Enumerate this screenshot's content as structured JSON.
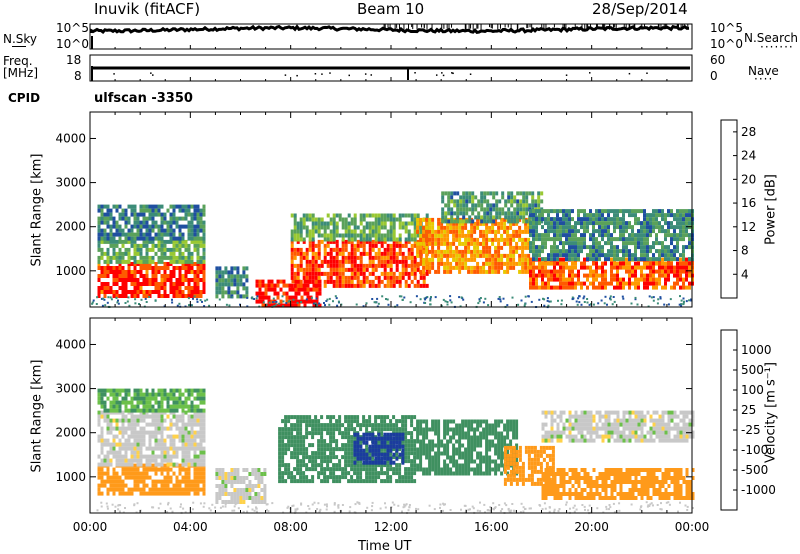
{
  "header": {
    "title": "Inuvik (fitACF)",
    "beam": "Beam 10",
    "date": "28/Sep/2014"
  },
  "strip": {
    "nsky_label": "N.Sky",
    "nsearch_label": "N.Search",
    "nsearch_dots": "·······",
    "freq_label_top": "Freq.",
    "freq_label_bottom": "[MHz]",
    "nave_label": "Nave",
    "nave_dots": "····",
    "cpid_label": "CPID",
    "cpid_value": "ulfscan -3350",
    "noise_ticks_left": [
      "10^5",
      "10^0"
    ],
    "noise_ticks_right": [
      "10^5",
      "10^0"
    ],
    "freq_ticks_left": [
      "18",
      "8"
    ],
    "nave_ticks_right": [
      "60",
      "0"
    ]
  },
  "colors": {
    "power_scale": [
      "#0000ff",
      "#1f4fa0",
      "#3c8c78",
      "#5aa15a",
      "#99c832",
      "#e8c800",
      "#ff9900",
      "#ff5a00",
      "#ff0000"
    ],
    "velocity_scale": [
      "#1b3c9e",
      "#2e6aa8",
      "#3f9060",
      "#6cc04a",
      "#c8c8c8",
      "#ffd24a",
      "#ff9a1a",
      "#ff5a00",
      "#ff0000"
    ]
  },
  "chart_data": [
    {
      "type": "heatmap",
      "name": "power",
      "ylabel": "Slant Range [km]",
      "xlabel": "Time UT",
      "x_ticks": [
        "00:00",
        "04:00",
        "08:00",
        "12:00",
        "16:00",
        "20:00",
        "00:00"
      ],
      "y_ticks": [
        "1000",
        "2000",
        "3000",
        "4000"
      ],
      "xlim_hours": [
        0,
        24
      ],
      "ylim_km": [
        180,
        4600
      ],
      "colorbar": {
        "label": "Power [dB]",
        "ticks": [
          "4",
          "8",
          "12",
          "16",
          "20",
          "24",
          "28"
        ],
        "range": [
          0,
          30
        ]
      },
      "regions": [
        {
          "t": [
            0.3,
            4.5
          ],
          "r": [
            400,
            1200
          ],
          "value": 27
        },
        {
          "t": [
            0.3,
            4.5
          ],
          "r": [
            1200,
            1700
          ],
          "value": 12
        },
        {
          "t": [
            0.3,
            4.5
          ],
          "r": [
            1700,
            2500
          ],
          "value": 8
        },
        {
          "t": [
            5.0,
            6.2
          ],
          "r": [
            400,
            1100
          ],
          "value": 8
        },
        {
          "t": [
            6.6,
            9.2
          ],
          "r": [
            250,
            800
          ],
          "value": 28
        },
        {
          "t": [
            8.0,
            13.5
          ],
          "r": [
            700,
            1700
          ],
          "value": 26
        },
        {
          "t": [
            8.0,
            13.5
          ],
          "r": [
            1700,
            2300
          ],
          "value": 12
        },
        {
          "t": [
            13.0,
            17.5
          ],
          "r": [
            1000,
            2200
          ],
          "value": 22
        },
        {
          "t": [
            14.0,
            18.0
          ],
          "r": [
            2100,
            2800
          ],
          "value": 10
        },
        {
          "t": [
            17.5,
            24.0
          ],
          "r": [
            600,
            1300
          ],
          "value": 25
        },
        {
          "t": [
            17.5,
            24.0
          ],
          "r": [
            1300,
            2400
          ],
          "value": 9
        }
      ]
    },
    {
      "type": "heatmap",
      "name": "velocity",
      "ylabel": "Slant Range [km]",
      "xlabel": "Time UT",
      "x_ticks": [
        "00:00",
        "04:00",
        "08:00",
        "12:00",
        "16:00",
        "20:00",
        "00:00"
      ],
      "y_ticks": [
        "1000",
        "2000",
        "3000",
        "4000"
      ],
      "xlim_hours": [
        0,
        24
      ],
      "ylim_km": [
        180,
        4600
      ],
      "colorbar": {
        "label": "Velocity [m s⁻¹]",
        "ticks": [
          "1000",
          "500",
          "100",
          "25",
          "-25",
          "-100",
          "-500",
          "-1000"
        ]
      },
      "regions": [
        {
          "t": [
            0.3,
            4.5
          ],
          "r": [
            600,
            1300
          ],
          "value": -150
        },
        {
          "t": [
            0.3,
            4.5
          ],
          "r": [
            1300,
            2500
          ],
          "value": 0
        },
        {
          "t": [
            0.3,
            4.5
          ],
          "r": [
            2500,
            3000
          ],
          "value": 60
        },
        {
          "t": [
            5.0,
            7.0
          ],
          "r": [
            400,
            1200
          ],
          "value": 0
        },
        {
          "t": [
            7.5,
            13.0
          ],
          "r": [
            900,
            2400
          ],
          "value": 150
        },
        {
          "t": [
            10.5,
            12.5
          ],
          "r": [
            1300,
            2000
          ],
          "value": 800
        },
        {
          "t": [
            13.0,
            17.0
          ],
          "r": [
            1100,
            2300
          ],
          "value": 200
        },
        {
          "t": [
            16.5,
            18.5
          ],
          "r": [
            800,
            1700
          ],
          "value": -200
        },
        {
          "t": [
            18.0,
            24.0
          ],
          "r": [
            500,
            1200
          ],
          "value": -200
        },
        {
          "t": [
            18.0,
            24.0
          ],
          "r": [
            1800,
            2500
          ],
          "value": 0
        }
      ]
    }
  ]
}
